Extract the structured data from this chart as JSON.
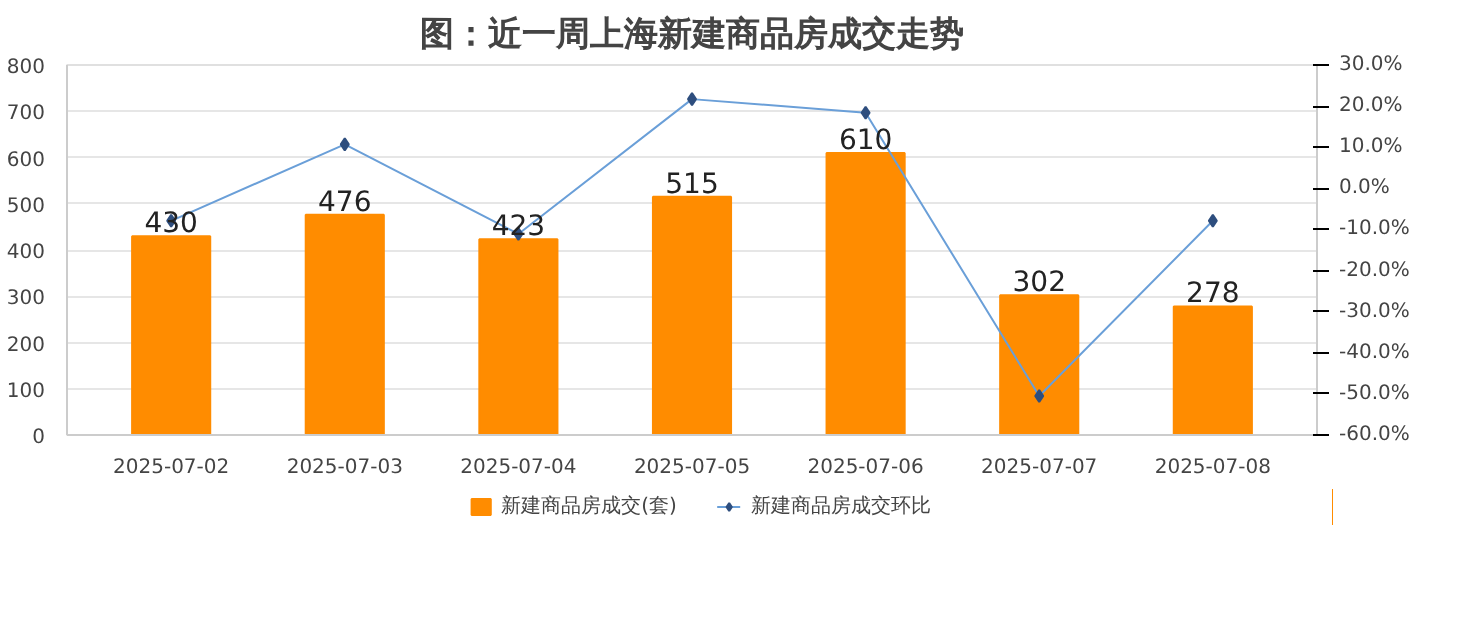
{
  "chart_data": {
    "type": "bar",
    "title": "图：近一周上海新建商品房成交走势",
    "categories": [
      "2025-07-02",
      "2025-07-03",
      "2025-07-04",
      "2025-07-05",
      "2025-07-06",
      "2025-07-07",
      "2025-07-08"
    ],
    "series": [
      {
        "name": "新建商品房成交(套)",
        "color": "#ff8c00",
        "values": [
          430,
          476,
          423,
          515,
          610,
          302,
          278
        ],
        "data_labels": true
      },
      {
        "name": "新建商品房成交环比",
        "type": "line",
        "axis": "y2",
        "color": "#6a9fd8",
        "marker": "diamond",
        "values": [
          -7.9,
          10.7,
          -11.1,
          21.7,
          18.4,
          -50.5,
          -7.9
        ]
      }
    ],
    "ylim": [
      0,
      800
    ],
    "yticks": [
      0,
      100,
      200,
      300,
      400,
      500,
      600,
      700,
      800
    ],
    "y2lim": [
      -60,
      30
    ],
    "y2ticks": [
      {
        "value": -60,
        "label": "-60.0%"
      },
      {
        "value": -50,
        "label": "-50.0%"
      },
      {
        "value": -40,
        "label": "-40.0%"
      },
      {
        "value": -30,
        "label": "-30.0%"
      },
      {
        "value": -20,
        "label": "-20.0%"
      },
      {
        "value": -10,
        "label": "-10.0%"
      },
      {
        "value": 0,
        "label": "0.0%"
      },
      {
        "value": 10,
        "label": "10.0%"
      },
      {
        "value": 20,
        "label": "20.0%"
      },
      {
        "value": 30,
        "label": "30.0%"
      }
    ],
    "grid": "y",
    "legend": "bottom"
  }
}
